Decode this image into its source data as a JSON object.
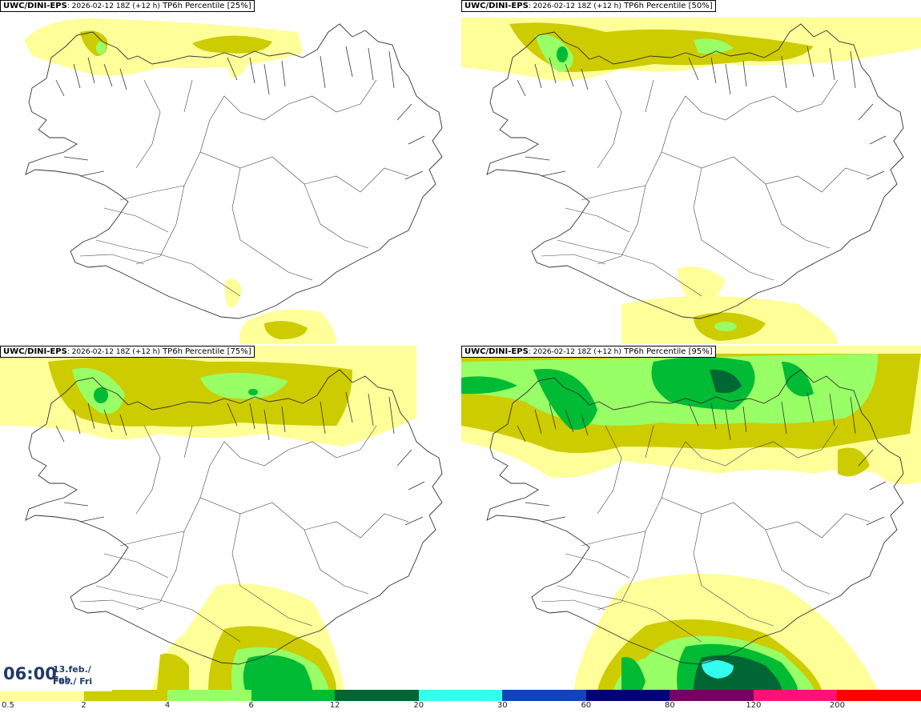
{
  "panels": [
    {
      "id": "p25",
      "model": "UWC/DINI-EPS",
      "info": ": 2026-02-12 18Z (+12 h)",
      "title": " TP6h Percentile ",
      "percentile": "[25%]"
    },
    {
      "id": "p50",
      "model": "UWC/DINI-EPS",
      "info": ": 2026-02-12 18Z (+12 h)",
      "title": " TP6h Percentile ",
      "percentile": "[50%]"
    },
    {
      "id": "p75",
      "model": "UWC/DINI-EPS",
      "info": ": 2026-02-12 18Z (+12 h)",
      "title": " TP6h Percentile ",
      "percentile": "[75%]"
    },
    {
      "id": "p95",
      "model": "UWC/DINI-EPS",
      "info": ": 2026-02-12 18Z (+12 h)",
      "title": " TP6h Percentile ",
      "percentile": "[95%]"
    }
  ],
  "time": {
    "clock": "06:00",
    "date_line1": "13.feb./ Feb",
    "date_line2": "Fös./ Fri"
  },
  "legend": {
    "ticks": [
      "0.5",
      "2",
      "4",
      "6",
      "12",
      "20",
      "30",
      "60",
      "80",
      "120",
      "200"
    ],
    "colors": [
      "#ffff99",
      "#cccc00",
      "#99ff66",
      "#00bb33",
      "#006633",
      "#33ffee",
      "#1144bb",
      "#000077",
      "#770066",
      "#ff1177",
      "#ff0000"
    ]
  },
  "shade_colors": {
    "light": "#ffff99",
    "olive": "#cccc00",
    "lightgreen": "#99ff66",
    "green": "#00bb33",
    "darkgreen": "#006633",
    "cyan": "#33ffee"
  }
}
